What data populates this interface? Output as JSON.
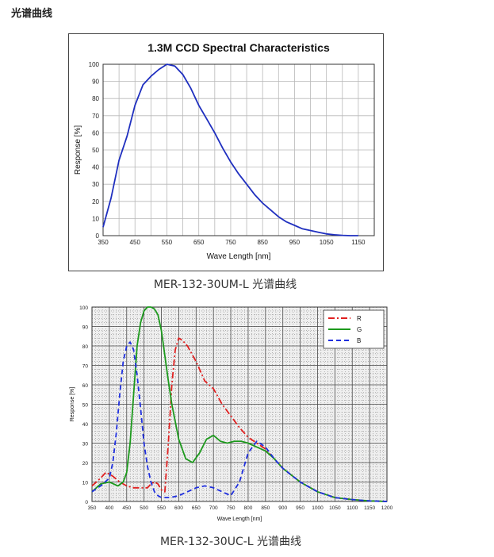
{
  "page": {
    "heading": "光谱曲线",
    "captions": [
      "MER-132-30UM-L 光谱曲线",
      "MER-132-30UC-L 光谱曲线"
    ]
  },
  "chart_data": [
    {
      "type": "line",
      "title": "1.3M CCD Spectral Characteristics",
      "xlabel": "Wave Length [nm]",
      "ylabel": "Response [%]",
      "xlim": [
        350,
        1200
      ],
      "ylim": [
        0,
        100
      ],
      "xticks": [
        350,
        450,
        550,
        650,
        750,
        850,
        950,
        1050,
        1150
      ],
      "yticks": [
        0,
        10,
        20,
        30,
        40,
        50,
        60,
        70,
        80,
        90,
        100
      ],
      "grid": true,
      "series": [
        {
          "color": "#1f2fbf",
          "x": [
            350,
            375,
            400,
            425,
            450,
            475,
            500,
            525,
            550,
            575,
            600,
            625,
            650,
            675,
            700,
            725,
            750,
            775,
            800,
            825,
            850,
            875,
            900,
            925,
            950,
            975,
            1000,
            1025,
            1050,
            1075,
            1100,
            1125,
            1150
          ],
          "y": [
            5,
            22,
            44,
            58,
            76,
            88,
            93,
            97,
            100,
            99,
            94,
            86,
            76,
            68,
            60,
            51,
            43,
            36,
            30,
            24,
            19,
            15,
            11,
            8,
            6,
            4,
            3,
            2,
            1,
            0.5,
            0.2,
            0,
            0
          ]
        }
      ]
    },
    {
      "type": "line",
      "title": "",
      "xlabel": "Wave Length [nm]",
      "ylabel": "Response [%]",
      "xlim": [
        350,
        1200
      ],
      "ylim": [
        0,
        100
      ],
      "xticks": [
        350,
        400,
        450,
        500,
        550,
        600,
        650,
        700,
        750,
        800,
        850,
        900,
        950,
        1000,
        1050,
        1100,
        1150,
        1200
      ],
      "yticks": [
        0,
        10,
        20,
        30,
        40,
        50,
        60,
        70,
        80,
        90,
        100
      ],
      "grid": true,
      "legend": "top-right",
      "series": [
        {
          "name": "R",
          "color": "#e02020",
          "dash": "dashdot",
          "x": [
            350,
            375,
            390,
            410,
            430,
            450,
            470,
            490,
            510,
            520,
            530,
            540,
            550,
            560,
            570,
            580,
            590,
            600,
            610,
            625,
            650,
            675,
            700,
            725,
            750,
            775,
            800,
            825,
            850,
            875,
            900,
            950,
            1000,
            1050,
            1100,
            1150,
            1200
          ],
          "y": [
            8,
            12,
            15,
            13,
            10,
            8,
            7,
            7,
            7,
            9,
            10,
            9,
            6,
            5,
            30,
            60,
            78,
            84,
            83,
            80,
            72,
            62,
            58,
            50,
            44,
            38,
            33,
            30,
            27,
            22,
            17,
            10,
            5,
            2,
            1,
            0.3,
            0
          ]
        },
        {
          "name": "G",
          "color": "#1d9a1d",
          "dash": "solid",
          "x": [
            350,
            375,
            400,
            425,
            440,
            450,
            460,
            470,
            480,
            490,
            500,
            510,
            520,
            530,
            540,
            550,
            560,
            570,
            580,
            600,
            620,
            640,
            660,
            680,
            700,
            720,
            740,
            760,
            780,
            800,
            825,
            850,
            875,
            900,
            950,
            1000,
            1050,
            1100,
            1150,
            1200
          ],
          "y": [
            5,
            9,
            10,
            8,
            10,
            15,
            30,
            55,
            80,
            92,
            98,
            100,
            100,
            99,
            96,
            88,
            75,
            62,
            50,
            32,
            22,
            20,
            25,
            32,
            34,
            31,
            30,
            31,
            31,
            30,
            28,
            26,
            22,
            17,
            10,
            5,
            2,
            1,
            0.3,
            0
          ]
        },
        {
          "name": "B",
          "color": "#1f2fdf",
          "dash": "dashed",
          "x": [
            350,
            375,
            400,
            410,
            420,
            430,
            440,
            450,
            460,
            470,
            480,
            490,
            500,
            510,
            520,
            530,
            540,
            550,
            575,
            600,
            625,
            650,
            675,
            700,
            725,
            750,
            775,
            800,
            825,
            850,
            875,
            900,
            950,
            1000,
            1050,
            1100,
            1150,
            1200
          ],
          "y": [
            5,
            8,
            12,
            20,
            35,
            55,
            72,
            80,
            82,
            78,
            65,
            48,
            30,
            18,
            10,
            5,
            3,
            2,
            2,
            3,
            5,
            7,
            8,
            7,
            5,
            3,
            10,
            25,
            31,
            28,
            22,
            17,
            10,
            5,
            2,
            1,
            0.3,
            0
          ]
        }
      ]
    }
  ]
}
